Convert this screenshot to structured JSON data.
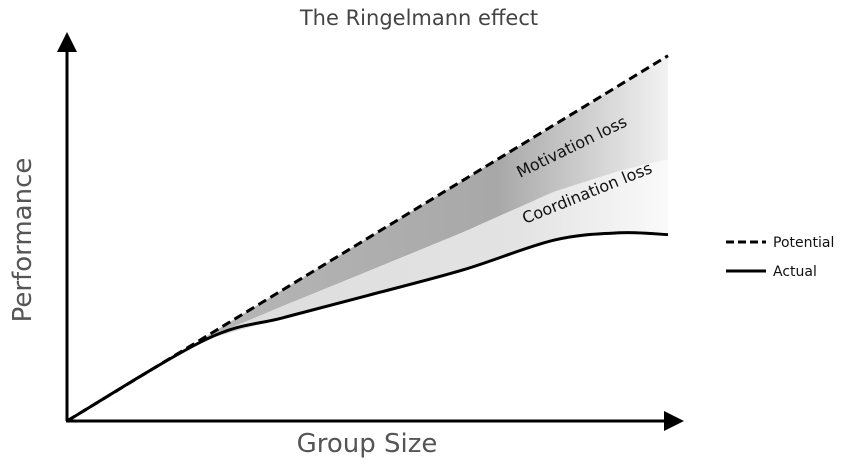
{
  "chart_data": {
    "type": "line",
    "title": "The Ringelmann effect",
    "xlabel": "Group Size",
    "ylabel": "Performance",
    "ticks": "none",
    "grid": false,
    "legend_placement": "right",
    "xlim": [
      0,
      10
    ],
    "ylim": [
      0,
      10
    ],
    "series": [
      {
        "name": "Potential",
        "style": "dashed",
        "color": "#000000",
        "x": [
          0,
          10
        ],
        "y": [
          0,
          9.9
        ]
      },
      {
        "name": "Actual",
        "style": "solid",
        "color": "#000000",
        "x": [
          0,
          2.3,
          3.6,
          5,
          6.6,
          8.1,
          9.2,
          10
        ],
        "y": [
          0,
          2.2,
          2.8,
          3.4,
          4.1,
          4.9,
          5.1,
          5.05
        ]
      }
    ],
    "bands": [
      {
        "label": "Motivation loss",
        "color": "#9a9a9a"
      },
      {
        "label": "Coordination loss",
        "color": "#d4d4d4"
      }
    ]
  }
}
